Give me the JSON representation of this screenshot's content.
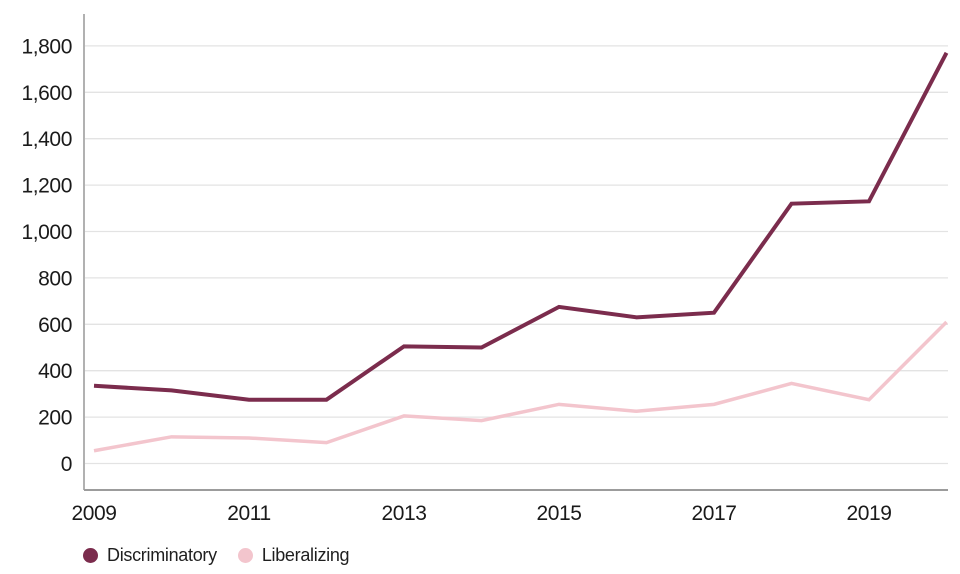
{
  "chart_data": {
    "type": "line",
    "title": "",
    "xlabel": "",
    "ylabel": "",
    "x": [
      2009,
      2010,
      2011,
      2012,
      2013,
      2014,
      2015,
      2016,
      2017,
      2018,
      2019,
      2020
    ],
    "series": [
      {
        "name": "Discriminatory",
        "color": "#7b2c4d",
        "values": [
          335,
          315,
          275,
          275,
          505,
          500,
          675,
          630,
          650,
          1120,
          1130,
          1770
        ]
      },
      {
        "name": "Liberalizing",
        "color": "#f3c5cd",
        "values": [
          55,
          115,
          110,
          90,
          205,
          185,
          255,
          225,
          255,
          345,
          275,
          610
        ]
      }
    ],
    "y_ticks": [
      0,
      200,
      400,
      600,
      800,
      1000,
      1200,
      1400,
      1600,
      1800
    ],
    "y_tick_labels": [
      "0",
      "200",
      "400",
      "600",
      "800",
      "1,000",
      "1,200",
      "1,400",
      "1,600",
      "1,800"
    ],
    "x_tick_years": [
      2009,
      2011,
      2013,
      2015,
      2017,
      2019
    ],
    "x_tick_labels": [
      "2009",
      "2011",
      "2013",
      "2015",
      "2017",
      "2019"
    ],
    "ylim": [
      0,
      1940
    ],
    "grid": "horizontal",
    "legend_position": "bottom-left"
  },
  "legend": {
    "items": [
      {
        "label": "Discriminatory",
        "color": "#7b2c4d"
      },
      {
        "label": "Liberalizing",
        "color": "#f3c5cd"
      }
    ]
  },
  "colors": {
    "background": "#ffffff",
    "gridline": "#e3e3e3",
    "axis_vertical": "#b1b1b1",
    "axis_bottom": "#9c9c9c",
    "tick_text": "#1a1a1a",
    "discriminatory": "#7b2c4d",
    "liberalizing": "#f3c5cd"
  }
}
